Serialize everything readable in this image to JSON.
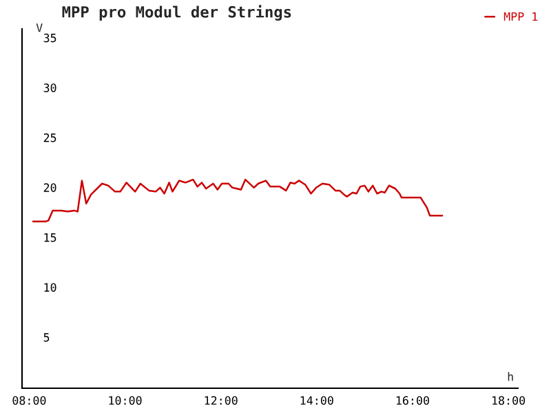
{
  "chart_data": {
    "type": "line",
    "title": "MPP pro Modul der Strings",
    "xlabel": "h",
    "ylabel": "V",
    "xlim": [
      7.85,
      18.2
    ],
    "ylim": [
      0,
      36
    ],
    "xticks": [
      {
        "value": 8,
        "label": "08:00"
      },
      {
        "value": 10,
        "label": "10:00"
      },
      {
        "value": 12,
        "label": "12:00"
      },
      {
        "value": 14,
        "label": "14:00"
      },
      {
        "value": 16,
        "label": "16:00"
      },
      {
        "value": 18,
        "label": "18:00"
      }
    ],
    "yticks": [
      5,
      10,
      15,
      20,
      25,
      30,
      35
    ],
    "grid": false,
    "legend": "top right",
    "marker": "none",
    "line_style": "solid",
    "series": [
      {
        "name": "MPP 1",
        "color": "#cc0000",
        "x": [
          8.08,
          8.34,
          8.4,
          8.49,
          8.67,
          8.8,
          8.94,
          9.01,
          9.1,
          9.19,
          9.29,
          9.52,
          9.65,
          9.79,
          9.9,
          10.03,
          10.21,
          10.32,
          10.5,
          10.64,
          10.73,
          10.82,
          10.92,
          10.99,
          11.13,
          11.26,
          11.42,
          11.51,
          11.6,
          11.69,
          11.84,
          11.93,
          12.02,
          12.16,
          12.24,
          12.42,
          12.51,
          12.69,
          12.78,
          12.94,
          13.03,
          13.23,
          13.36,
          13.45,
          13.54,
          13.63,
          13.76,
          13.88,
          13.99,
          14.12,
          14.26,
          14.39,
          14.48,
          14.57,
          14.63,
          14.75,
          14.83,
          14.91,
          15.0,
          15.08,
          15.17,
          15.26,
          15.35,
          15.42,
          15.51,
          15.64,
          15.73,
          15.77,
          15.91,
          16.04,
          16.17,
          16.3,
          16.36,
          16.62
        ],
        "values": [
          16.7,
          16.7,
          16.8,
          17.8,
          17.8,
          17.7,
          17.8,
          17.7,
          20.8,
          18.5,
          19.4,
          20.5,
          20.3,
          19.7,
          19.7,
          20.6,
          19.7,
          20.5,
          19.8,
          19.7,
          20.1,
          19.5,
          20.6,
          19.7,
          20.8,
          20.6,
          20.9,
          20.2,
          20.6,
          20.0,
          20.5,
          19.9,
          20.5,
          20.5,
          20.1,
          19.9,
          20.9,
          20.1,
          20.5,
          20.8,
          20.2,
          20.2,
          19.8,
          20.6,
          20.5,
          20.8,
          20.4,
          19.5,
          20.1,
          20.5,
          20.4,
          19.8,
          19.8,
          19.4,
          19.2,
          19.6,
          19.5,
          20.2,
          20.3,
          19.7,
          20.3,
          19.5,
          19.7,
          19.6,
          20.3,
          20.0,
          19.5,
          19.1,
          19.1,
          19.1,
          19.1,
          18.1,
          17.3,
          17.3
        ]
      }
    ]
  }
}
